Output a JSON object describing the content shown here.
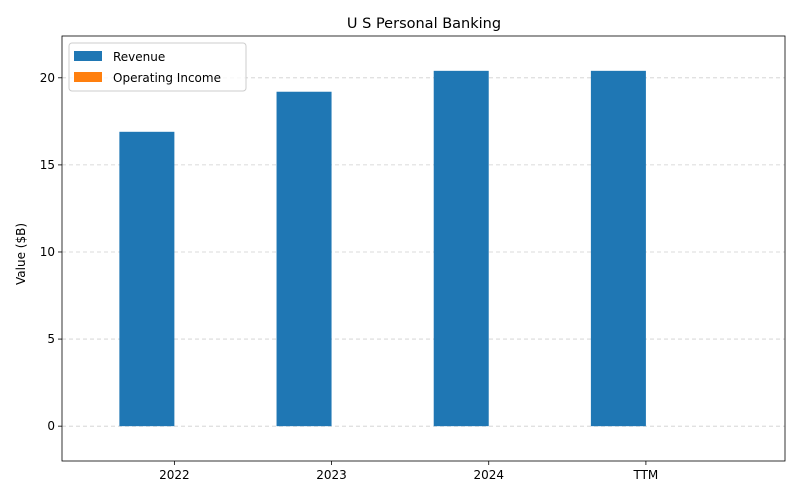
{
  "chart_data": {
    "type": "bar",
    "title": "U S Personal Banking",
    "xlabel": "",
    "ylabel": "Value ($B)",
    "categories": [
      "2022",
      "2023",
      "2024",
      "TTM"
    ],
    "series": [
      {
        "name": "Revenue",
        "values": [
          16.9,
          19.2,
          20.4,
          20.4
        ],
        "color": "#1f77b4"
      },
      {
        "name": "Operating Income",
        "values": [
          0,
          0,
          0,
          0
        ],
        "color": "#ff7f0e"
      }
    ],
    "ylim": [
      -2,
      22.4
    ],
    "yticks": [
      0,
      5,
      10,
      15,
      20
    ],
    "grid": true,
    "grid_axis": "y",
    "legend_position": "top-left"
  }
}
